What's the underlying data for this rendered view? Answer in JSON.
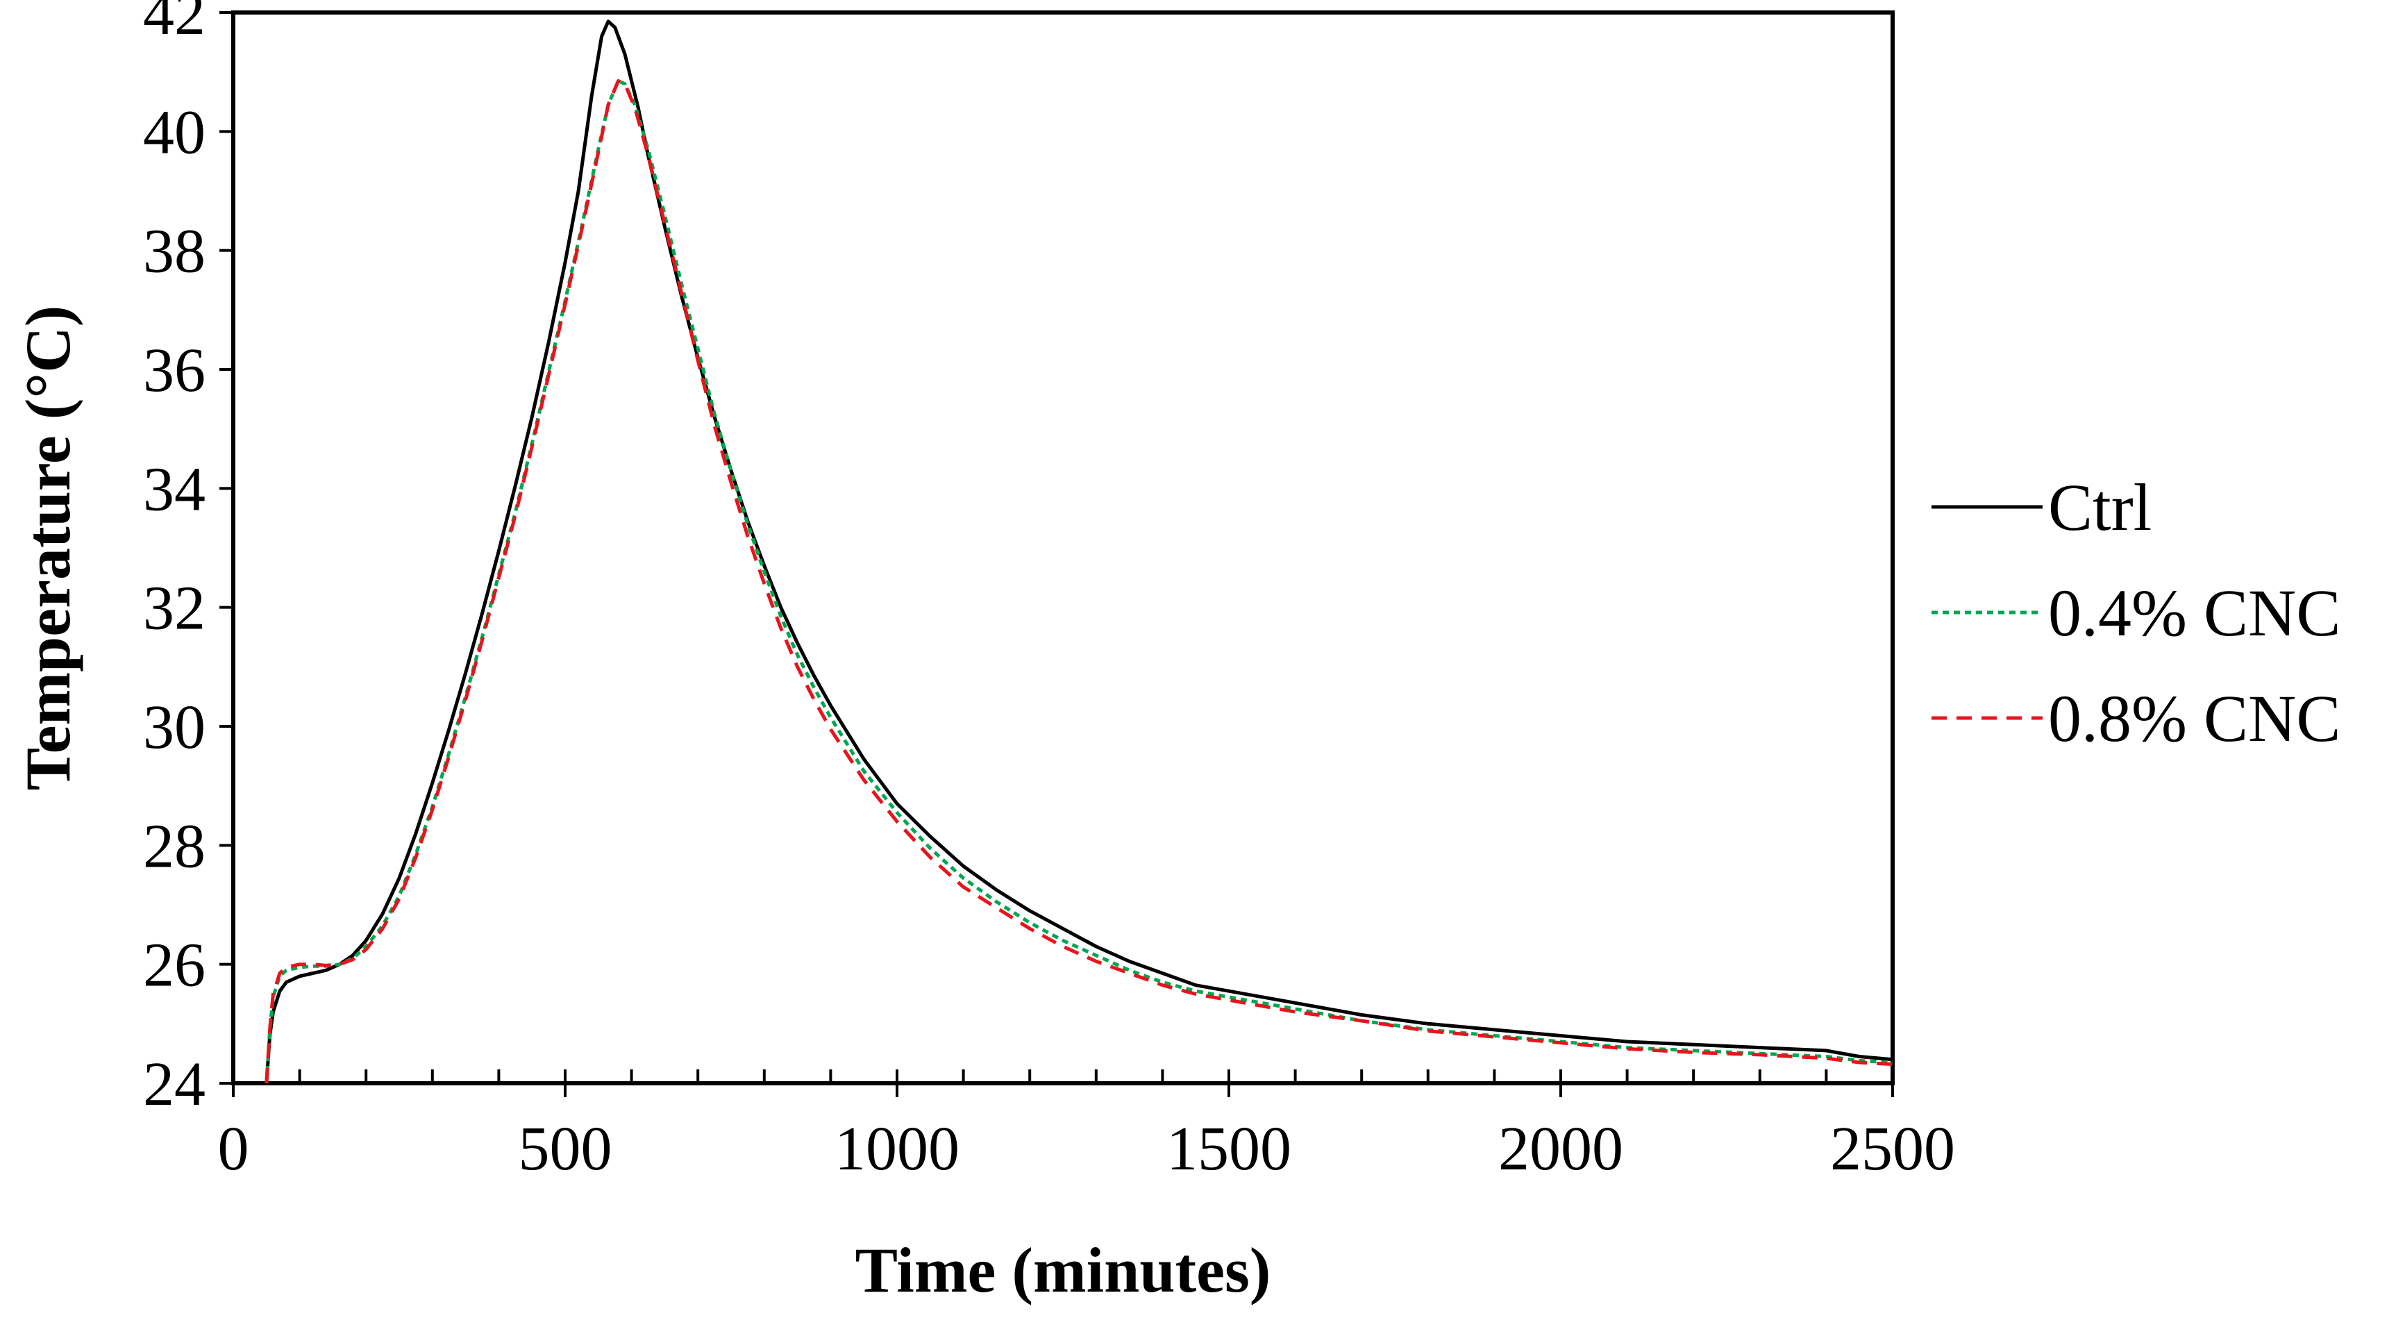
{
  "chart_data": {
    "type": "line",
    "xlabel": "Time (minutes)",
    "ylabel": "Temperature (°C)",
    "xlim": [
      0,
      2500
    ],
    "ylim": [
      24,
      42
    ],
    "xticks": [
      0,
      500,
      1000,
      1500,
      2000,
      2500
    ],
    "xtick_labels": [
      "0",
      "500",
      "1000",
      "1500",
      "2000",
      "2500"
    ],
    "yticks": [
      24,
      26,
      28,
      30,
      32,
      34,
      36,
      38,
      40,
      42
    ],
    "ytick_labels": [
      "24",
      "26",
      "28",
      "30",
      "32",
      "34",
      "36",
      "38",
      "40",
      "42"
    ],
    "x_minor_step": 100,
    "grid": false,
    "legend_position": "right",
    "series": [
      {
        "name": "Ctrl",
        "color": "#000000",
        "style": "solid",
        "points": [
          [
            50,
            24.0
          ],
          [
            55,
            24.8
          ],
          [
            60,
            25.2
          ],
          [
            70,
            25.55
          ],
          [
            80,
            25.7
          ],
          [
            100,
            25.8
          ],
          [
            120,
            25.85
          ],
          [
            140,
            25.9
          ],
          [
            160,
            26.0
          ],
          [
            180,
            26.15
          ],
          [
            200,
            26.4
          ],
          [
            225,
            26.85
          ],
          [
            250,
            27.45
          ],
          [
            275,
            28.2
          ],
          [
            300,
            29.05
          ],
          [
            325,
            29.95
          ],
          [
            350,
            30.9
          ],
          [
            375,
            31.9
          ],
          [
            400,
            32.95
          ],
          [
            425,
            34.05
          ],
          [
            450,
            35.2
          ],
          [
            475,
            36.45
          ],
          [
            500,
            37.8
          ],
          [
            520,
            39.0
          ],
          [
            540,
            40.6
          ],
          [
            555,
            41.6
          ],
          [
            565,
            41.85
          ],
          [
            575,
            41.75
          ],
          [
            590,
            41.3
          ],
          [
            610,
            40.4
          ],
          [
            625,
            39.6
          ],
          [
            650,
            38.4
          ],
          [
            675,
            37.25
          ],
          [
            700,
            36.2
          ],
          [
            725,
            35.2
          ],
          [
            750,
            34.3
          ],
          [
            775,
            33.45
          ],
          [
            800,
            32.7
          ],
          [
            825,
            32.0
          ],
          [
            850,
            31.4
          ],
          [
            875,
            30.85
          ],
          [
            900,
            30.35
          ],
          [
            950,
            29.45
          ],
          [
            1000,
            28.7
          ],
          [
            1050,
            28.15
          ],
          [
            1100,
            27.65
          ],
          [
            1150,
            27.25
          ],
          [
            1200,
            26.9
          ],
          [
            1250,
            26.6
          ],
          [
            1300,
            26.3
          ],
          [
            1350,
            26.05
          ],
          [
            1400,
            25.85
          ],
          [
            1450,
            25.65
          ],
          [
            1500,
            25.55
          ],
          [
            1600,
            25.35
          ],
          [
            1700,
            25.15
          ],
          [
            1800,
            25.0
          ],
          [
            1900,
            24.9
          ],
          [
            2000,
            24.8
          ],
          [
            2100,
            24.7
          ],
          [
            2200,
            24.65
          ],
          [
            2300,
            24.6
          ],
          [
            2400,
            24.55
          ],
          [
            2450,
            24.45
          ],
          [
            2500,
            24.4
          ]
        ]
      },
      {
        "name": "0.4% CNC",
        "color": "#00a651",
        "style": "dotted",
        "points": [
          [
            50,
            24.0
          ],
          [
            55,
            24.9
          ],
          [
            60,
            25.45
          ],
          [
            70,
            25.8
          ],
          [
            80,
            25.9
          ],
          [
            100,
            25.95
          ],
          [
            120,
            25.97
          ],
          [
            140,
            25.97
          ],
          [
            160,
            26.0
          ],
          [
            180,
            26.1
          ],
          [
            200,
            26.3
          ],
          [
            225,
            26.65
          ],
          [
            250,
            27.15
          ],
          [
            275,
            27.85
          ],
          [
            300,
            28.65
          ],
          [
            325,
            29.55
          ],
          [
            350,
            30.5
          ],
          [
            375,
            31.5
          ],
          [
            400,
            32.55
          ],
          [
            425,
            33.6
          ],
          [
            450,
            34.75
          ],
          [
            475,
            35.95
          ],
          [
            500,
            37.15
          ],
          [
            525,
            38.4
          ],
          [
            550,
            39.7
          ],
          [
            565,
            40.45
          ],
          [
            580,
            40.85
          ],
          [
            590,
            40.8
          ],
          [
            605,
            40.45
          ],
          [
            625,
            39.7
          ],
          [
            650,
            38.6
          ],
          [
            675,
            37.45
          ],
          [
            700,
            36.35
          ],
          [
            725,
            35.25
          ],
          [
            750,
            34.3
          ],
          [
            775,
            33.4
          ],
          [
            800,
            32.6
          ],
          [
            825,
            31.85
          ],
          [
            850,
            31.2
          ],
          [
            875,
            30.65
          ],
          [
            900,
            30.15
          ],
          [
            950,
            29.25
          ],
          [
            1000,
            28.55
          ],
          [
            1050,
            27.95
          ],
          [
            1100,
            27.45
          ],
          [
            1150,
            27.05
          ],
          [
            1200,
            26.7
          ],
          [
            1250,
            26.4
          ],
          [
            1300,
            26.15
          ],
          [
            1350,
            25.9
          ],
          [
            1400,
            25.7
          ],
          [
            1450,
            25.55
          ],
          [
            1500,
            25.45
          ],
          [
            1600,
            25.25
          ],
          [
            1700,
            25.05
          ],
          [
            1800,
            24.9
          ],
          [
            1900,
            24.8
          ],
          [
            2000,
            24.7
          ],
          [
            2100,
            24.6
          ],
          [
            2200,
            24.55
          ],
          [
            2300,
            24.5
          ],
          [
            2400,
            24.45
          ],
          [
            2450,
            24.38
          ],
          [
            2500,
            24.35
          ]
        ]
      },
      {
        "name": "0.8% CNC",
        "color": "#e8141c",
        "style": "dashed",
        "points": [
          [
            50,
            24.0
          ],
          [
            55,
            24.9
          ],
          [
            60,
            25.5
          ],
          [
            70,
            25.85
          ],
          [
            80,
            25.95
          ],
          [
            100,
            26.0
          ],
          [
            120,
            26.0
          ],
          [
            140,
            25.98
          ],
          [
            160,
            26.0
          ],
          [
            180,
            26.08
          ],
          [
            200,
            26.25
          ],
          [
            225,
            26.6
          ],
          [
            250,
            27.1
          ],
          [
            275,
            27.8
          ],
          [
            300,
            28.6
          ],
          [
            325,
            29.5
          ],
          [
            350,
            30.45
          ],
          [
            375,
            31.45
          ],
          [
            400,
            32.5
          ],
          [
            425,
            33.55
          ],
          [
            450,
            34.7
          ],
          [
            475,
            35.9
          ],
          [
            500,
            37.1
          ],
          [
            525,
            38.35
          ],
          [
            550,
            39.65
          ],
          [
            565,
            40.45
          ],
          [
            580,
            40.85
          ],
          [
            590,
            40.8
          ],
          [
            605,
            40.4
          ],
          [
            625,
            39.6
          ],
          [
            650,
            38.45
          ],
          [
            675,
            37.3
          ],
          [
            700,
            36.15
          ],
          [
            725,
            35.05
          ],
          [
            750,
            34.1
          ],
          [
            775,
            33.2
          ],
          [
            800,
            32.4
          ],
          [
            825,
            31.65
          ],
          [
            850,
            31.0
          ],
          [
            875,
            30.45
          ],
          [
            900,
            29.95
          ],
          [
            950,
            29.1
          ],
          [
            1000,
            28.4
          ],
          [
            1050,
            27.8
          ],
          [
            1100,
            27.3
          ],
          [
            1150,
            26.95
          ],
          [
            1200,
            26.6
          ],
          [
            1250,
            26.3
          ],
          [
            1300,
            26.05
          ],
          [
            1350,
            25.85
          ],
          [
            1400,
            25.65
          ],
          [
            1450,
            25.5
          ],
          [
            1500,
            25.4
          ],
          [
            1600,
            25.2
          ],
          [
            1700,
            25.05
          ],
          [
            1800,
            24.88
          ],
          [
            1900,
            24.78
          ],
          [
            2000,
            24.68
          ],
          [
            2100,
            24.58
          ],
          [
            2200,
            24.52
          ],
          [
            2300,
            24.48
          ],
          [
            2400,
            24.42
          ],
          [
            2450,
            24.35
          ],
          [
            2500,
            24.32
          ]
        ]
      }
    ]
  }
}
